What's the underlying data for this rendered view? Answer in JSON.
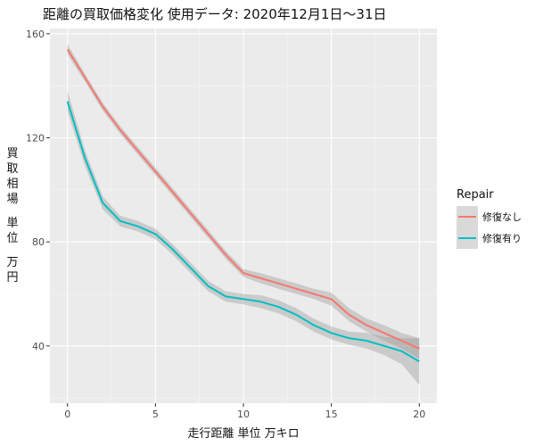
{
  "chart_data": {
    "type": "line",
    "title": "距離の買取価格変化 使用データ: 2020年12月1日～31日",
    "xlabel": "走行距離 単位 万キロ",
    "ylabel_lines": [
      "買",
      "取",
      "相",
      "場",
      "",
      "単",
      "位",
      "",
      "万",
      "円"
    ],
    "xlim": [
      -1,
      21
    ],
    "ylim": [
      18,
      162
    ],
    "x_ticks": [
      0,
      5,
      10,
      15,
      20
    ],
    "y_ticks": [
      40,
      80,
      120,
      160
    ],
    "grid": true,
    "legend": {
      "title": "Repair",
      "position": "right"
    },
    "series": [
      {
        "name": "修復なし",
        "color": "#F8766D",
        "x": [
          0,
          1,
          2,
          3,
          4,
          5,
          6,
          7,
          8,
          9,
          10,
          11,
          12,
          13,
          14,
          15,
          16,
          17,
          18,
          19,
          20
        ],
        "y": [
          154,
          143,
          132,
          123,
          115,
          107,
          99,
          91,
          83,
          75,
          68,
          66,
          64,
          62,
          60,
          58,
          52,
          48,
          45,
          42,
          39
        ],
        "lower": [
          152,
          141.5,
          130.5,
          121.5,
          113.5,
          105.5,
          97.5,
          89.5,
          81.5,
          73.5,
          66.5,
          64,
          62,
          60,
          58,
          55.5,
          49.5,
          45.5,
          42,
          39,
          35
        ],
        "upper": [
          156,
          144.5,
          133.5,
          124.5,
          116.5,
          108.5,
          100.5,
          92.5,
          84.5,
          76.5,
          69.5,
          68,
          66,
          64,
          62,
          60.5,
          54.5,
          50.5,
          48,
          45,
          43
        ]
      },
      {
        "name": "修復有り",
        "color": "#00BFC4",
        "x": [
          0,
          1,
          2,
          3,
          4,
          5,
          6,
          7,
          8,
          9,
          10,
          11,
          12,
          13,
          14,
          15,
          16,
          17,
          18,
          19,
          20
        ],
        "y": [
          134,
          112,
          95,
          88,
          86,
          83,
          77,
          70,
          63,
          59,
          58,
          57,
          55,
          52,
          48,
          45,
          43,
          42,
          40,
          38,
          34
        ],
        "lower": [
          130,
          109,
          92.5,
          86,
          84,
          81,
          75,
          68,
          61,
          57,
          56,
          54.5,
          52.5,
          49.5,
          45.5,
          42.5,
          40.5,
          39,
          36.5,
          33,
          25
        ],
        "upper": [
          138,
          115,
          97.5,
          90,
          88,
          85,
          79,
          72,
          65,
          61,
          60,
          59.5,
          57.5,
          54.5,
          50.5,
          47.5,
          45.5,
          45,
          43.5,
          43,
          43
        ]
      }
    ]
  }
}
